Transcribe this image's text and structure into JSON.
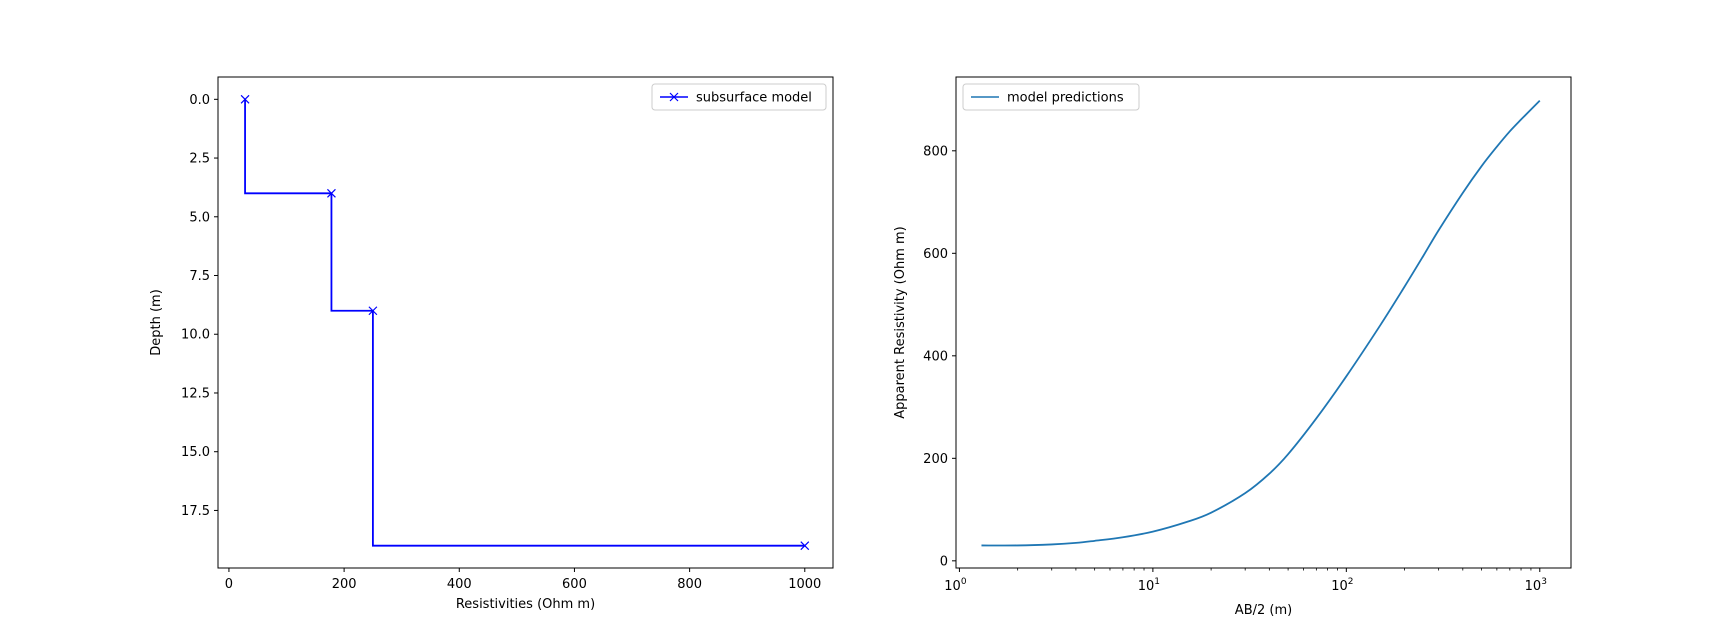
{
  "chart_data": [
    {
      "type": "line",
      "xlabel": "Resistivities (Ohm m)",
      "ylabel": "Depth (m)",
      "xlim": [
        -19,
        1049
      ],
      "ylim": [
        19.95,
        -0.95
      ],
      "y_inverted": true,
      "grid": false,
      "legend": "top-right",
      "xticks": [
        "0",
        "200",
        "400",
        "600",
        "800",
        "1000"
      ],
      "xtick_values": [
        0,
        200,
        400,
        600,
        800,
        1000
      ],
      "yticks": [
        "0.0",
        "2.5",
        "5.0",
        "7.5",
        "10.0",
        "12.5",
        "15.0",
        "17.5"
      ],
      "ytick_values": [
        0,
        2.5,
        5,
        7.5,
        10,
        12.5,
        15,
        17.5
      ],
      "series": [
        {
          "name": "subsurface model",
          "color": "#0000ff",
          "marker": "x",
          "drawstyle": "steps-post",
          "points": [
            {
              "x": 28,
              "y": 0
            },
            {
              "x": 178,
              "y": 4
            },
            {
              "x": 250,
              "y": 9
            },
            {
              "x": 1000,
              "y": 19
            }
          ]
        }
      ]
    },
    {
      "type": "line",
      "xlabel": "AB/2 (m)",
      "ylabel": "Apparent Resistivity (Ohm m)",
      "xscale": "log",
      "xlim": [
        0.96,
        1450
      ],
      "ylim": [
        -14,
        944
      ],
      "grid": false,
      "legend": "top-left",
      "xticks": [
        {
          "base": "10",
          "exp": "0",
          "value": 1
        },
        {
          "base": "10",
          "exp": "1",
          "value": 10
        },
        {
          "base": "10",
          "exp": "2",
          "value": 100
        },
        {
          "base": "10",
          "exp": "3",
          "value": 1000
        }
      ],
      "yticks": [
        "0",
        "200",
        "400",
        "600",
        "800"
      ],
      "ytick_values": [
        0,
        200,
        400,
        600,
        800
      ],
      "series": [
        {
          "name": "model predictions",
          "color": "#1f77b4",
          "x": [
            1.3,
            2,
            3,
            4,
            5,
            7,
            10,
            15,
            20,
            30,
            40,
            50,
            70,
            100,
            150,
            200,
            250,
            300,
            400,
            500,
            600,
            700,
            800,
            1000
          ],
          "y": [
            30,
            30,
            32,
            35,
            39,
            46,
            57,
            76,
            94,
            132,
            170,
            208,
            278,
            360,
            460,
            535,
            595,
            645,
            718,
            770,
            808,
            838,
            861,
            898
          ]
        }
      ]
    }
  ]
}
